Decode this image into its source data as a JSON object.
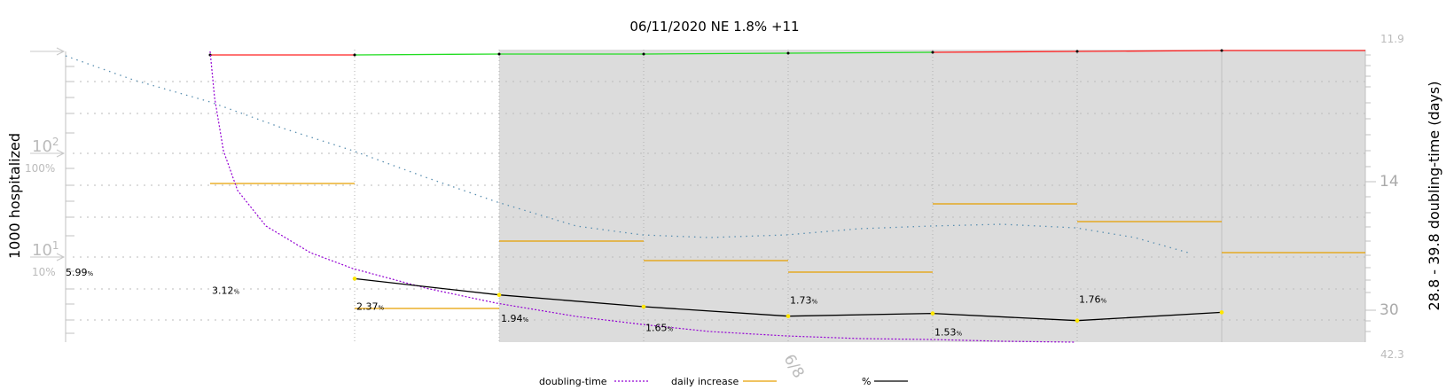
{
  "chart_data": {
    "type": "line",
    "title": "06/11/2020 NE 1.8% +11",
    "ylabel_left": "1000 hospitalized",
    "ylabel_right": "28.8 - 39.8 doubling-time (days)",
    "left_axis": {
      "scale": "log",
      "major_ticks": [
        {
          "value": 100,
          "base": "10",
          "exp": "2",
          "pct": "100%"
        },
        {
          "value": 10,
          "base": "10",
          "exp": "1",
          "pct": "10%"
        }
      ]
    },
    "right_axis": {
      "labels": [
        "11.9",
        "14",
        "30",
        "42.3"
      ],
      "range": [
        11.9,
        42.3
      ]
    },
    "x_annotation": "6/8",
    "shaded_from_index": 2,
    "series": [
      {
        "name": "%",
        "color": "#000000",
        "values": [
          5.99,
          3.12,
          2.37,
          1.94,
          1.65,
          1.73,
          1.53,
          1.76
        ],
        "value_labels": [
          "5.99",
          "3.12",
          "2.37",
          "1.94",
          "1.65",
          "1.73",
          "1.53",
          "1.76"
        ],
        "unit_suffix": "%"
      },
      {
        "name": "doubling-time",
        "color": "#9400d3",
        "style": "dashed"
      },
      {
        "name": "daily increase",
        "color": "#e69f00"
      }
    ],
    "legend": {
      "placement": "bottom-center",
      "items": [
        "doubling-time",
        "daily increase",
        "%"
      ]
    }
  }
}
